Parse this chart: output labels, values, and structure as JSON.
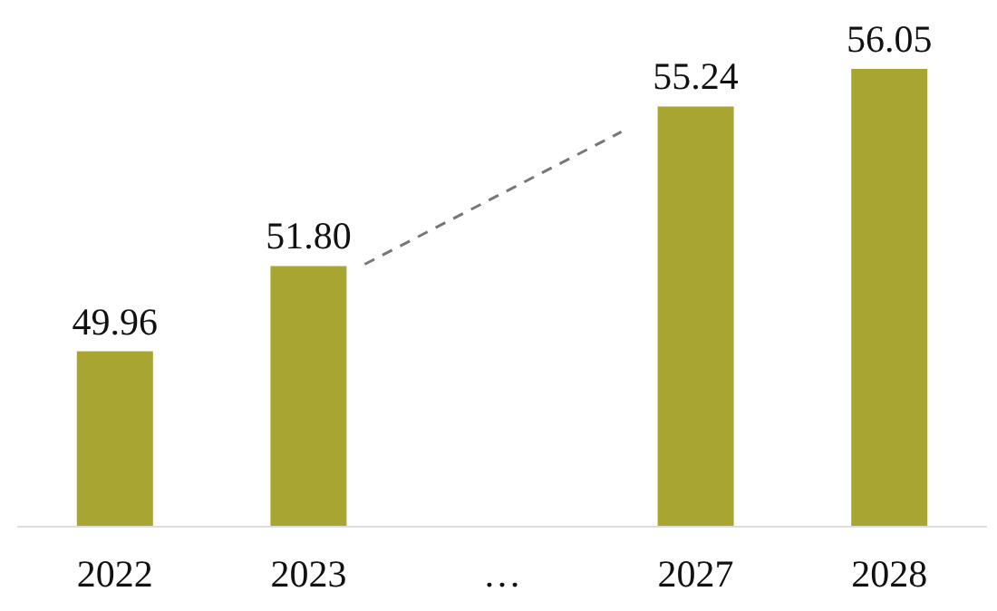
{
  "chart_data": {
    "type": "bar",
    "categories": [
      "2022",
      "2023",
      "…",
      "2027",
      "2028"
    ],
    "values": [
      49.96,
      51.8,
      null,
      55.24,
      56.05
    ],
    "value_labels": [
      "49.96",
      "51.80",
      null,
      "55.24",
      "56.05"
    ],
    "color": "#a8a530",
    "ylim": [
      46.2,
      56.05
    ],
    "tick_labels": "x"
  }
}
